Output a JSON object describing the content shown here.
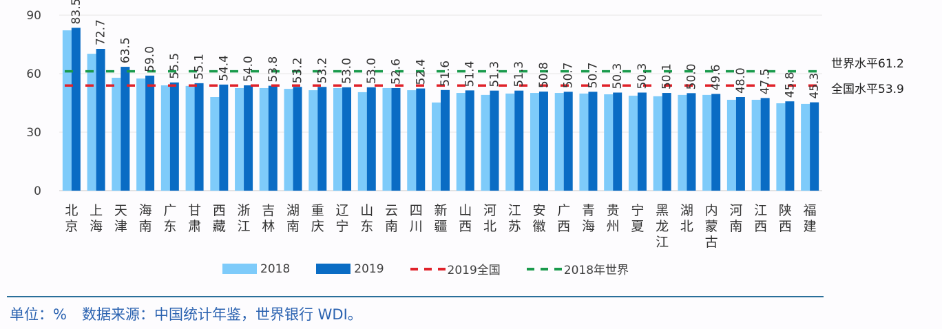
{
  "chart_data": {
    "type": "bar",
    "title": "",
    "xlabel": "",
    "ylabel": "",
    "ylim": [
      0,
      90
    ],
    "yticks": [
      0,
      30,
      60,
      90
    ],
    "grid": true,
    "categories": [
      "北京",
      "上海",
      "天津",
      "海南",
      "广东",
      "甘肃",
      "西藏",
      "浙江",
      "吉林",
      "湖南",
      "重庆",
      "辽宁",
      "山东",
      "云南",
      "四川",
      "新疆",
      "山西",
      "河北",
      "江苏",
      "安徽",
      "广西",
      "青海",
      "贵州",
      "宁夏",
      "黑龙江",
      "湖北",
      "内蒙古",
      "河南",
      "江西",
      "陕西",
      "福建"
    ],
    "series": [
      {
        "name": "2018",
        "color": "#7ecbfa",
        "values": [
          82.2,
          70.2,
          57.9,
          57.5,
          54.0,
          53.7,
          48.0,
          52.6,
          52.6,
          52.2,
          51.5,
          52.6,
          50.5,
          52.6,
          51.5,
          45.2,
          50.1,
          49.1,
          49.8,
          50.1,
          50.1,
          49.8,
          49.4,
          48.7,
          48.4,
          49.1,
          49.1,
          46.6,
          46.6,
          44.8,
          44.5
        ]
      },
      {
        "name": "2019",
        "color": "#0a6cc4",
        "values": [
          83.5,
          72.7,
          63.5,
          59.0,
          55.5,
          55.1,
          54.4,
          54.0,
          53.8,
          53.2,
          53.2,
          53.0,
          53.0,
          52.6,
          52.4,
          51.6,
          51.4,
          51.3,
          51.3,
          50.8,
          50.7,
          50.7,
          50.3,
          50.3,
          50.1,
          50.0,
          49.6,
          48.0,
          47.5,
          45.8,
          45.3
        ],
        "data_labels": [
          "83.5",
          "72.7",
          "63.5",
          "59.0",
          "55.5",
          "55.1",
          "54.4",
          "54.0",
          "53.8",
          "53.2",
          "53.2",
          "53.0",
          "53.0",
          "52.6",
          "52.4",
          "51.6",
          "51.4",
          "51.3",
          "51.3",
          "50.8",
          "50.7",
          "50.7",
          "50.3",
          "50.3",
          "50.1",
          "50.0",
          "49.6",
          "48.0",
          "47.5",
          "45.8",
          "45.3"
        ]
      }
    ],
    "reference_lines": [
      {
        "name": "2019全国",
        "value": 53.9,
        "color": "#e0222a",
        "style": "dashed",
        "annotation": "全国水平53.9"
      },
      {
        "name": "2018年世界",
        "value": 61.2,
        "color": "#1a9a4c",
        "style": "dashed",
        "annotation": "世界水平61.2"
      }
    ],
    "legend": [
      "2018",
      "2019",
      "2019全国",
      "2018年世界"
    ],
    "legend_position": "bottom"
  },
  "legend": {
    "s2018": "2018",
    "s2019": "2019",
    "national": "2019全国",
    "world": "2018年世界"
  },
  "notes": {
    "world": "世界水平61.2",
    "national": "全国水平53.9"
  },
  "footer": {
    "unit": "单位：%",
    "source": "数据来源：中国统计年鉴，世界银行 WDI。"
  },
  "colors": {
    "bar2018": "#7ecbfa",
    "bar2019": "#0a6cc4",
    "national": "#e0222a",
    "world": "#1a9a4c",
    "footer": "#2a62b0"
  }
}
